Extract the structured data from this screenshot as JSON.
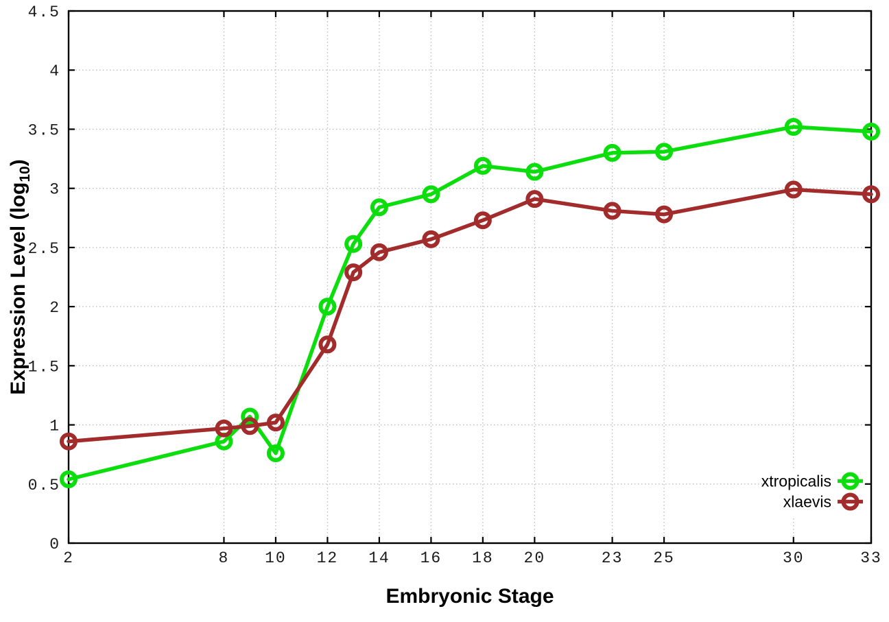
{
  "chart_data": {
    "type": "line",
    "title": "",
    "xlabel": "Embryonic Stage",
    "ylabel": "Expression Level (log10)",
    "ylabel_parts": {
      "prefix": "Expression Level (log",
      "sub": "10",
      "suffix": ")"
    },
    "xlim": [
      2,
      33
    ],
    "ylim": [
      0,
      4.5
    ],
    "grid": true,
    "legend_position": "inside-bottom-right",
    "x_ticks": [
      2,
      8,
      10,
      12,
      14,
      16,
      18,
      20,
      23,
      25,
      30,
      33
    ],
    "x_tick_labels": [
      "2",
      "8",
      "10",
      "12",
      "14",
      "16",
      "18",
      "20",
      "23",
      "25",
      "30",
      "33"
    ],
    "y_ticks": [
      0,
      0.5,
      1,
      1.5,
      2,
      2.5,
      3,
      3.5,
      4,
      4.5
    ],
    "y_tick_labels": [
      "0",
      "0.5",
      "1",
      "1.5",
      "2",
      "2.5",
      "3",
      "3.5",
      "4",
      "4.5"
    ],
    "x": [
      2,
      8,
      9,
      10,
      12,
      13,
      14,
      16,
      18,
      20,
      23,
      25,
      30,
      33
    ],
    "series": [
      {
        "name": "xtropicalis",
        "color": "#0cdd0c",
        "marker": "open-circle",
        "values": [
          0.54,
          0.86,
          1.07,
          0.76,
          2.0,
          2.53,
          2.84,
          2.95,
          3.19,
          3.14,
          3.3,
          3.31,
          3.52,
          3.48
        ]
      },
      {
        "name": "xlaevis",
        "color": "#a22c2c",
        "marker": "open-circle",
        "values": [
          0.86,
          0.97,
          0.99,
          1.02,
          1.68,
          2.29,
          2.46,
          2.57,
          2.73,
          2.91,
          2.81,
          2.78,
          2.99,
          2.95
        ]
      }
    ],
    "style": {
      "frame_color": "#000000",
      "grid_color": "#bdbdbd",
      "background": "#ffffff",
      "line_width": 5.5,
      "marker_radius": 10,
      "tick_length": 9
    }
  }
}
